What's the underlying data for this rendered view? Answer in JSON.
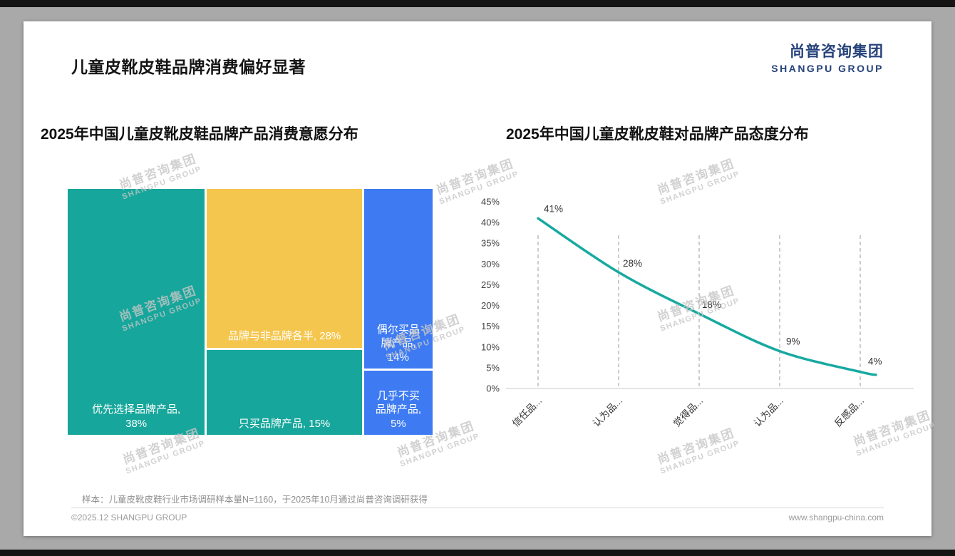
{
  "page": {
    "title": "儿童皮靴皮鞋品牌消费偏好显著",
    "logo": {
      "cn": "尚普咨询集团",
      "en": "SHANGPU GROUP"
    },
    "watermark": {
      "cn": "尚普咨询集团",
      "en": "SHANGPU GROUP"
    },
    "footer": {
      "note": "样本：儿童皮靴皮鞋行业市场调研样本量N=1160，于2025年10月通过尚普咨询调研获得",
      "copyright": "©2025.12 SHANGPU GROUP",
      "website": "www.shangpu-china.com"
    },
    "colors": {
      "teal": "#16A69B",
      "yellow": "#F5C64D",
      "blue": "#3E7BF2",
      "logo_navy": "#26427B",
      "line_teal": "#17A9A1"
    }
  },
  "chart_data": [
    {
      "type": "treemap",
      "title": "2025年中国儿童皮靴皮鞋品牌产品消费意愿分布",
      "segments": [
        {
          "id": "priority-brand",
          "label": "优先选择品牌产品",
          "value": 38,
          "text": "优先选择品牌产品, 38%",
          "col": 0,
          "color": "#16A69B",
          "label_width": 150
        },
        {
          "id": "half-brand",
          "label": "品牌与非品牌各半",
          "value": 28,
          "text": "品牌与非品牌各半, 28%",
          "col": 1,
          "color": "#F5C64D"
        },
        {
          "id": "only-brand",
          "label": "只买品牌产品",
          "value": 15,
          "text": "只买品牌产品, 15%",
          "col": 1,
          "color": "#16A69B"
        },
        {
          "id": "occasional-brand",
          "label": "偶尔买品牌产品",
          "value": 14,
          "text": "偶尔买品牌产品, 14%",
          "col": 2,
          "color": "#3E7BF2",
          "label_width": 70
        },
        {
          "id": "almost-never-brand",
          "label": "几乎不买品牌产品",
          "value": 5,
          "text": "几乎不买品牌产品, 5%",
          "col": 2,
          "color": "#3E7BF2",
          "label_width": 70
        }
      ]
    },
    {
      "type": "line",
      "title": "2025年中国儿童皮靴皮鞋对品牌产品态度分布",
      "categories": [
        "信任品...",
        "认为品...",
        "觉得品...",
        "认为品...",
        "反感品..."
      ],
      "values": [
        41,
        28,
        18,
        9,
        4
      ],
      "ylim": [
        0,
        45
      ],
      "ytick_step": 5,
      "line_color": "#17A9A1",
      "grid": "dashed-vertical",
      "legend": "none"
    }
  ]
}
